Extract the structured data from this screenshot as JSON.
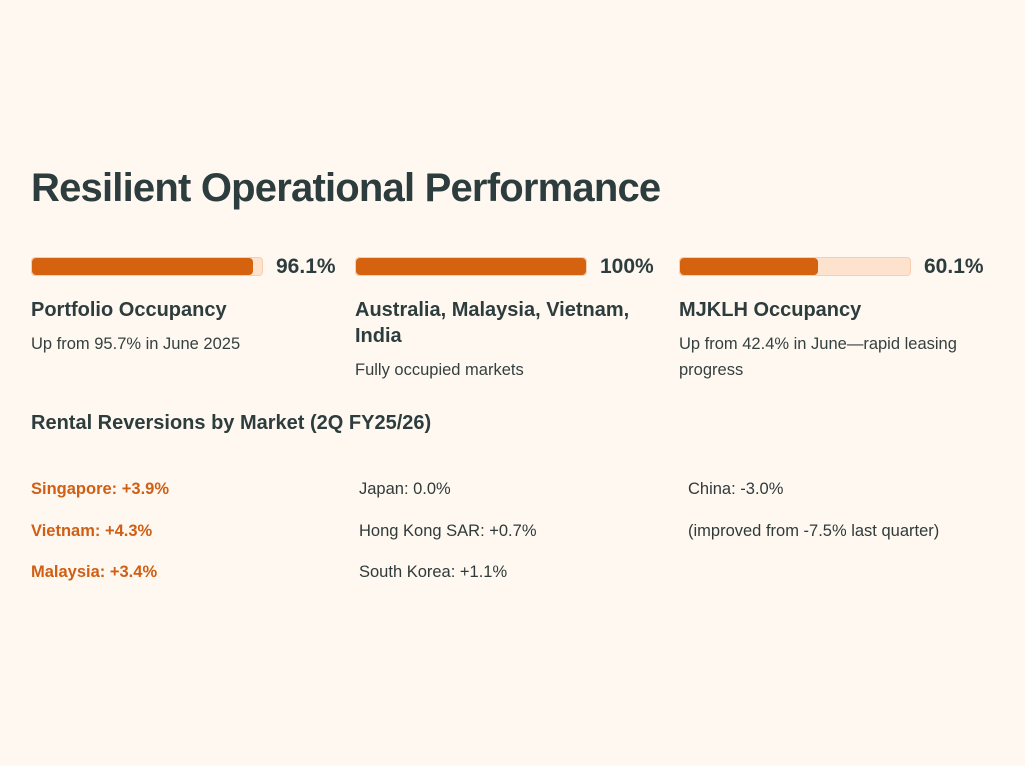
{
  "title": "Resilient Operational Performance",
  "colors": {
    "background": "#fff8f1",
    "accent": "#d4620f",
    "track": "#fde3cd",
    "heading": "#2d3d3e",
    "highlight_text": "#cf5f14"
  },
  "metrics": [
    {
      "value_label": "96.1%",
      "fill_percent": 96.1,
      "heading": "Portfolio Occupancy",
      "description": "Up from 95.7% in June 2025"
    },
    {
      "value_label": "100%",
      "fill_percent": 100,
      "heading": "Australia, Malaysia, Vietnam, India",
      "description": "Fully occupied markets"
    },
    {
      "value_label": "60.1%",
      "fill_percent": 60.1,
      "heading": "MJKLH Occupancy",
      "description": "Up from 42.4% in June—rapid leasing progress"
    }
  ],
  "reversions": {
    "title": "Rental Reversions by Market (2Q FY25/26)",
    "columns": [
      [
        {
          "text": "Singapore: +3.9%",
          "highlight": true
        },
        {
          "text": "Vietnam: +4.3%",
          "highlight": true
        },
        {
          "text": "Malaysia: +3.4%",
          "highlight": true
        }
      ],
      [
        {
          "text": "Japan: 0.0%",
          "highlight": false
        },
        {
          "text": "Hong Kong SAR: +0.7%",
          "highlight": false
        },
        {
          "text": "South Korea: +1.1%",
          "highlight": false
        }
      ],
      [
        {
          "text": "China: -3.0%",
          "highlight": false
        },
        {
          "text": "(improved from -7.5% last quarter)",
          "highlight": false
        }
      ]
    ]
  }
}
